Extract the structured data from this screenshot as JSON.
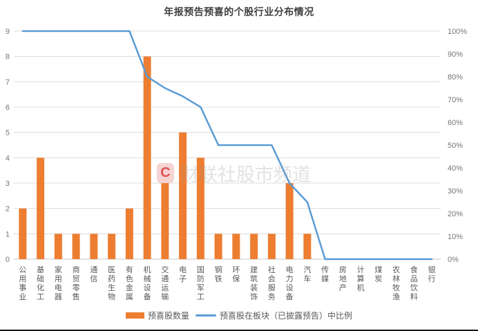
{
  "title": "年报预告预喜的个股行业分布情况",
  "watermark": {
    "badge": "C",
    "text": "财联社股市频道"
  },
  "legend": {
    "bar_label": "预喜股数量",
    "line_label": "预喜股在板块（已披露预告）中比例"
  },
  "colors": {
    "bar": "#ED7D31",
    "line": "#5B9BD5",
    "grid": "#dcdcdc",
    "tick_text": "#757575",
    "category_text": "#595959",
    "title_text": "#3f3f3f"
  },
  "chart_data": {
    "type": "combo-bar-line",
    "title": "年报预告预喜的个股行业分布情况",
    "categories": [
      "公用事业",
      "基础化工",
      "家用电器",
      "商贸零售",
      "通信",
      "医药生物",
      "有色金属",
      "机械设备",
      "交通运输",
      "电子",
      "国防军工",
      "钢铁",
      "环保",
      "建筑装饰",
      "社会服务",
      "电力设备",
      "汽车",
      "传媒",
      "房地产",
      "计算机",
      "煤炭",
      "农林牧渔",
      "食品饮料",
      "银行"
    ],
    "series": [
      {
        "name": "预喜股数量",
        "type": "bar",
        "axis": "left",
        "values": [
          2,
          4,
          1,
          1,
          1,
          1,
          2,
          8,
          3,
          5,
          4,
          1,
          1,
          1,
          1,
          3,
          1,
          0,
          0,
          0,
          0,
          0,
          0,
          0
        ]
      },
      {
        "name": "预喜股在板块（已披露预告）中比例",
        "type": "line",
        "axis": "right",
        "values": [
          100,
          100,
          100,
          100,
          100,
          100,
          100,
          80,
          75,
          71.4,
          66.7,
          50,
          50,
          50,
          50,
          33.3,
          25,
          0,
          0,
          0,
          0,
          0,
          0,
          0
        ]
      }
    ],
    "left_axis": {
      "min": 0,
      "max": 9,
      "tick_labels": [
        "0",
        "1",
        "2",
        "3",
        "4",
        "5",
        "6",
        "7",
        "8",
        "9"
      ]
    },
    "right_axis": {
      "min": 0,
      "max": 100,
      "tick_labels": [
        "0%",
        "10%",
        "20%",
        "30%",
        "40%",
        "50%",
        "60%",
        "70%",
        "80%",
        "90%",
        "100%"
      ]
    },
    "grid": "horizontal",
    "legend_position": "bottom"
  }
}
